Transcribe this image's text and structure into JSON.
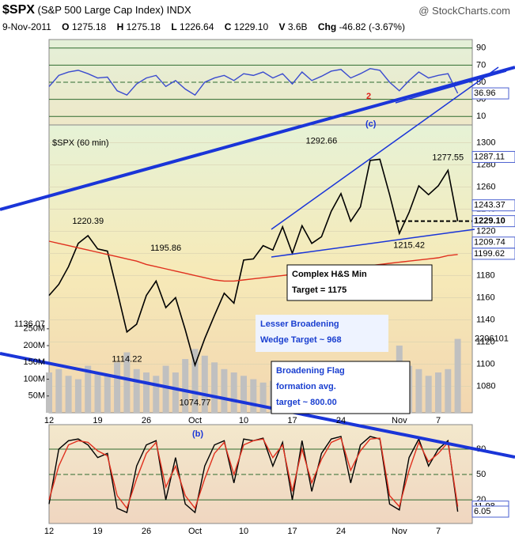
{
  "header": {
    "symbol": "$SPX",
    "name": "(S&P 500 Large Cap Index)",
    "exchange": "INDX",
    "source": "@ StockCharts.com",
    "date": "9-Nov-2011",
    "quote": [
      {
        "label": "O",
        "value": "1275.18"
      },
      {
        "label": "H",
        "value": "1275.18"
      },
      {
        "label": "L",
        "value": "1226.64"
      },
      {
        "label": "C",
        "value": "1229.10"
      },
      {
        "label": "V",
        "value": "3.6B"
      },
      {
        "label": "Chg",
        "value": "-46.82"
      }
    ],
    "change_pct": "(-3.67%)"
  },
  "chart_data": [
    {
      "type": "line",
      "ylim": [
        0,
        100
      ],
      "yticks": [
        10,
        30,
        50,
        70,
        90
      ],
      "series": [
        {
          "color": "#3a4bcf",
          "values": [
            45,
            58,
            62,
            64,
            60,
            55,
            56,
            40,
            35,
            48,
            55,
            58,
            45,
            52,
            42,
            35,
            50,
            55,
            58,
            52,
            60,
            58,
            62,
            55,
            60,
            48,
            62,
            52,
            57,
            63,
            65,
            55,
            60,
            66,
            64,
            50,
            40,
            52,
            62,
            55,
            58,
            60,
            37
          ]
        }
      ],
      "annotations": [
        {
          "text": "36.96"
        }
      ]
    },
    {
      "type": "line",
      "title": "$SPX (60 min)",
      "ylim": [
        1056,
        1316
      ],
      "yticks": [
        1080,
        1100,
        1120,
        1140,
        1160,
        1180,
        1200,
        1220,
        1240,
        1260,
        1280,
        1300
      ],
      "categories": [
        "12",
        null,
        null,
        null,
        null,
        "19",
        null,
        null,
        null,
        null,
        "26",
        null,
        null,
        null,
        null,
        "Oct",
        null,
        null,
        null,
        null,
        "10",
        null,
        null,
        null,
        null,
        "17",
        null,
        null,
        null,
        null,
        "24",
        null,
        null,
        null,
        null,
        null,
        "Nov",
        null,
        null,
        null,
        "7",
        null,
        null
      ],
      "series": [
        {
          "color": "#000000",
          "values": [
            1162,
            1172,
            1188,
            1209,
            1216,
            1204,
            1202,
            1166,
            1129,
            1136,
            1162,
            1175,
            1151,
            1160,
            1131,
            1099,
            1123,
            1144,
            1164,
            1155,
            1194,
            1195,
            1207,
            1203,
            1224,
            1200,
            1225,
            1209,
            1215,
            1238,
            1254,
            1229,
            1242,
            1284,
            1285,
            1253,
            1218,
            1237,
            1261,
            1253,
            1261,
            1275,
            1229
          ]
        },
        {
          "color": "#e0301e",
          "values": [
            1211,
            1209,
            1207,
            1205,
            1203,
            1201,
            1199,
            1197,
            1195,
            1193,
            1190,
            1188,
            1186,
            1184,
            1182,
            1180,
            1178,
            1176,
            1175,
            1175,
            1176,
            1177,
            1178,
            1179,
            1180,
            1181,
            1182,
            1183,
            1184,
            1185,
            1186,
            1187,
            1188,
            1189,
            1190,
            1191,
            1192,
            1193,
            1194,
            1195,
            1196,
            1198,
            1199
          ]
        }
      ],
      "volume": {
        "color": "#c0c0c0",
        "ylim": [
          0,
          857
        ],
        "yticks": [
          {
            "value": 50,
            "label": "50M"
          },
          {
            "value": 100,
            "label": "100M"
          },
          {
            "value": 150,
            "label": "150M"
          },
          {
            "value": 200,
            "label": "200M"
          },
          {
            "value": 250,
            "label": "250M"
          }
        ],
        "values": [
          120,
          130,
          110,
          100,
          140,
          120,
          110,
          150,
          180,
          130,
          120,
          110,
          140,
          120,
          160,
          190,
          170,
          150,
          130,
          120,
          110,
          100,
          90,
          95,
          100,
          110,
          105,
          100,
          120,
          110,
          100,
          130,
          110,
          140,
          110,
          150,
          200,
          140,
          130,
          110,
          120,
          130,
          220
        ],
        "last_label": "2206101"
      },
      "price_labels": [
        {
          "text": "1220.39"
        },
        {
          "text": "1195.86"
        },
        {
          "text": "1136.07"
        },
        {
          "text": "1114.22"
        },
        {
          "text": "1074.77"
        },
        {
          "text": "1292.66"
        },
        {
          "text": "1277.55"
        },
        {
          "text": "1215.42"
        }
      ],
      "right_labels": [
        "1287.11",
        "1243.37",
        "1229.10",
        "1209.74",
        "1199.62"
      ],
      "notes": [
        {
          "lines": [
            "Complex H&S Min",
            "Target = 1175"
          ]
        },
        {
          "lines": [
            "Lesser Broadening",
            "Wedge Target ~ 968"
          ]
        },
        {
          "lines": [
            "Broadening Flag",
            "formation avg.",
            "target ~ 800.00"
          ]
        }
      ],
      "waves": [
        {
          "text": "(c)"
        },
        {
          "text": "2"
        },
        {
          "text": "(b)"
        }
      ]
    },
    {
      "type": "line",
      "ylim": [
        -8,
        109
      ],
      "yticks": [
        20,
        50,
        80
      ],
      "categories": [
        "12",
        null,
        null,
        null,
        null,
        "19",
        null,
        null,
        null,
        null,
        "26",
        null,
        null,
        null,
        null,
        "Oct",
        null,
        null,
        null,
        null,
        "10",
        null,
        null,
        null,
        null,
        "17",
        null,
        null,
        null,
        null,
        "24",
        null,
        null,
        null,
        null,
        null,
        "Nov",
        null,
        null,
        null,
        "7",
        null,
        null
      ],
      "series": [
        {
          "color": "#000000",
          "values": [
            15,
            80,
            90,
            92,
            85,
            70,
            75,
            10,
            5,
            60,
            85,
            90,
            20,
            70,
            15,
            5,
            60,
            85,
            90,
            40,
            92,
            90,
            93,
            60,
            88,
            20,
            90,
            30,
            75,
            92,
            95,
            40,
            85,
            95,
            92,
            15,
            8,
            70,
            92,
            60,
            80,
            90,
            6
          ]
        },
        {
          "color": "#e0301e",
          "values": [
            20,
            60,
            85,
            90,
            88,
            78,
            72,
            25,
            10,
            45,
            75,
            88,
            35,
            60,
            25,
            10,
            45,
            75,
            88,
            50,
            85,
            90,
            92,
            70,
            85,
            30,
            80,
            40,
            68,
            88,
            93,
            55,
            78,
            92,
            93,
            25,
            12,
            55,
            88,
            65,
            75,
            88,
            12
          ]
        }
      ],
      "annotations": [
        {
          "text": "11.98"
        },
        {
          "text": "6.05"
        }
      ]
    }
  ]
}
